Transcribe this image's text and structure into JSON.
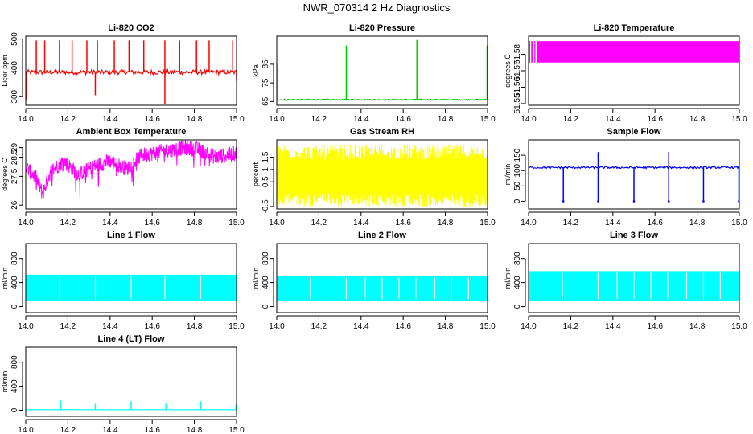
{
  "suptitle": "NWR_070314  2 Hz Diagnostics",
  "chart_data": [
    {
      "id": "co2",
      "type": "line",
      "title": "Li-820 CO2",
      "ylabel": "Licor ppm",
      "color": "#ff0000",
      "xlim": [
        14.0,
        15.0
      ],
      "ylim": [
        270,
        510
      ],
      "xticks": [
        14.0,
        14.2,
        14.4,
        14.6,
        14.8,
        15.0
      ],
      "yticks": [
        300,
        400,
        500
      ],
      "pattern": "spikes",
      "baseline": 385,
      "noise": 8,
      "spikes": [
        [
          14.05,
          495
        ],
        [
          14.09,
          495
        ],
        [
          14.16,
          495
        ],
        [
          14.22,
          495
        ],
        [
          14.29,
          495
        ],
        [
          14.34,
          495
        ],
        [
          14.42,
          495
        ],
        [
          14.49,
          495
        ],
        [
          14.56,
          495
        ],
        [
          14.66,
          495
        ],
        [
          14.73,
          495
        ],
        [
          14.81,
          495
        ],
        [
          14.87,
          495
        ],
        [
          14.98,
          495
        ]
      ],
      "dips": [
        [
          14.005,
          290
        ],
        [
          14.33,
          305
        ],
        [
          14.66,
          275
        ],
        [
          15.0,
          355
        ]
      ]
    },
    {
      "id": "pressure",
      "type": "line",
      "title": "Li-820 Pressure",
      "ylabel": "kPa",
      "color": "#00cc00",
      "xlim": [
        14.0,
        15.0
      ],
      "ylim": [
        63,
        100
      ],
      "xticks": [
        14.0,
        14.2,
        14.4,
        14.6,
        14.8,
        15.0
      ],
      "yticks": [
        65,
        75,
        85
      ],
      "pattern": "spikes",
      "baseline": 66,
      "noise": 0.3,
      "spikes": [
        [
          14.0,
          85
        ],
        [
          14.33,
          95
        ],
        [
          14.665,
          98
        ],
        [
          14.998,
          95
        ]
      ],
      "dips": []
    },
    {
      "id": "licor_temp",
      "type": "area",
      "title": "Li-820 Temperature",
      "ylabel": "degrees C",
      "color": "#ff00ff",
      "xlim": [
        14.0,
        15.0
      ],
      "ylim": [
        51.549,
        51.591
      ],
      "xticks": [
        14.0,
        14.2,
        14.4,
        14.6,
        14.8,
        15.0
      ],
      "yticks": [
        51.55,
        51.56,
        51.57,
        51.58
      ],
      "pattern": "band",
      "low": 51.575,
      "high": 51.588,
      "startSpikeLow": 51.55
    },
    {
      "id": "box_temp",
      "type": "line",
      "title": "Ambient Box Temperature",
      "ylabel": "degrees C",
      "color": "#ff00ff",
      "xlim": [
        14.0,
        15.0
      ],
      "ylim": [
        25.8,
        29.4
      ],
      "xticks": [
        14.0,
        14.2,
        14.4,
        14.6,
        14.8,
        15.0
      ],
      "yticks": [
        26.0,
        27.5,
        28.5,
        29.0
      ],
      "pattern": "trend",
      "trend": [
        [
          14.0,
          28.0
        ],
        [
          14.05,
          27.4
        ],
        [
          14.08,
          26.6
        ],
        [
          14.12,
          27.8
        ],
        [
          14.18,
          28.3
        ],
        [
          14.25,
          27.6
        ],
        [
          14.32,
          28.0
        ],
        [
          14.4,
          28.3
        ],
        [
          14.48,
          27.9
        ],
        [
          14.55,
          28.6
        ],
        [
          14.65,
          28.8
        ],
        [
          14.75,
          29.0
        ],
        [
          14.82,
          28.9
        ],
        [
          14.9,
          28.5
        ],
        [
          15.0,
          28.7
        ]
      ],
      "noise": 0.4
    },
    {
      "id": "rh",
      "type": "line",
      "title": "Gas Stream RH",
      "ylabel": "percent",
      "color": "#ffff00",
      "xlim": [
        14.0,
        15.0
      ],
      "ylim": [
        -0.6,
        2.2
      ],
      "xticks": [
        14.0,
        14.2,
        14.4,
        14.6,
        14.8,
        15.0
      ],
      "yticks": [
        -0.5,
        0.5,
        1.0,
        1.5
      ],
      "pattern": "band",
      "low": 0.0,
      "high": 1.4,
      "spread": 1.9
    },
    {
      "id": "sample_flow",
      "type": "line",
      "title": "Sample Flow",
      "ylabel": "ml/min",
      "color": "#0000ff",
      "xlim": [
        14.0,
        15.0
      ],
      "ylim": [
        -25,
        200
      ],
      "xticks": [
        14.0,
        14.2,
        14.4,
        14.6,
        14.8,
        15.0
      ],
      "yticks": [
        0,
        50,
        100,
        150
      ],
      "pattern": "spikes",
      "baseline": 110,
      "noise": 3,
      "spikes": [
        [
          14.0,
          160
        ],
        [
          14.33,
          160
        ],
        [
          14.665,
          160
        ],
        [
          14.998,
          115
        ]
      ],
      "dips": [
        [
          14.165,
          0
        ],
        [
          14.33,
          0
        ],
        [
          14.5,
          0
        ],
        [
          14.665,
          0
        ],
        [
          14.83,
          0
        ],
        [
          14.998,
          0
        ]
      ]
    },
    {
      "id": "line1",
      "type": "area",
      "title": "Line 1 Flow",
      "ylabel": "ml/min",
      "color": "#00ffff",
      "xlim": [
        14.0,
        15.0
      ],
      "ylim": [
        -100,
        1050
      ],
      "xticks": [
        14.0,
        14.2,
        14.4,
        14.6,
        14.8,
        15.0
      ],
      "yticks": [
        0,
        400,
        800
      ],
      "pattern": "band",
      "low": 100,
      "high": 530,
      "gaps": [
        14.16,
        14.33,
        14.5,
        14.66,
        14.83
      ]
    },
    {
      "id": "line2",
      "type": "area",
      "title": "Line 2 Flow",
      "ylabel": "ml/min",
      "color": "#00ffff",
      "xlim": [
        14.0,
        15.0
      ],
      "ylim": [
        -100,
        1050
      ],
      "xticks": [
        14.0,
        14.2,
        14.4,
        14.6,
        14.8,
        15.0
      ],
      "yticks": [
        0,
        400,
        800
      ],
      "pattern": "band",
      "low": 100,
      "high": 510,
      "gaps": [
        14.16,
        14.33,
        14.42,
        14.5,
        14.58,
        14.66,
        14.75,
        14.83,
        14.91
      ]
    },
    {
      "id": "line3",
      "type": "area",
      "title": "Line 3 Flow",
      "ylabel": "ml/min",
      "color": "#00ffff",
      "xlim": [
        14.0,
        15.0
      ],
      "ylim": [
        -100,
        1050
      ],
      "xticks": [
        14.0,
        14.2,
        14.4,
        14.6,
        14.8,
        15.0
      ],
      "yticks": [
        0,
        400,
        800
      ],
      "pattern": "band",
      "low": 100,
      "high": 590,
      "gaps": [
        14.16,
        14.33,
        14.42,
        14.5,
        14.58,
        14.66,
        14.75,
        14.83,
        14.91
      ]
    },
    {
      "id": "line4",
      "type": "line",
      "title": "Line 4 (LT) Flow",
      "ylabel": "ml/min",
      "color": "#00ffff",
      "xlim": [
        14.0,
        15.0
      ],
      "ylim": [
        -100,
        1050
      ],
      "xticks": [
        14.0,
        14.2,
        14.4,
        14.6,
        14.8,
        15.0
      ],
      "yticks": [
        0,
        400,
        800
      ],
      "pattern": "spikes",
      "baseline": 10,
      "noise": 2,
      "spikes": [
        [
          14.165,
          160
        ],
        [
          14.33,
          110
        ],
        [
          14.5,
          150
        ],
        [
          14.665,
          110
        ],
        [
          14.83,
          150
        ],
        [
          14.998,
          90
        ]
      ],
      "dips": []
    }
  ]
}
